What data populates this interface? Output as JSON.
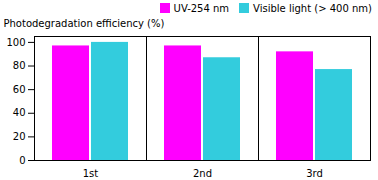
{
  "chart_data": {
    "type": "bar",
    "categories": [
      "1st",
      "2nd",
      "3rd"
    ],
    "series": [
      {
        "name": "UV-254 nm",
        "color": "#FF00FF",
        "values": [
          97,
          97,
          92
        ]
      },
      {
        "name": "Visible light (> 400 nm)",
        "color": "#33CCDD",
        "values": [
          100,
          87,
          77
        ]
      }
    ],
    "ylabel": "Photodegradation efficiency (%)",
    "ylim": [
      0,
      105
    ],
    "yticks": [
      0,
      20,
      40,
      60,
      80,
      100
    ],
    "legend": "upper right"
  }
}
